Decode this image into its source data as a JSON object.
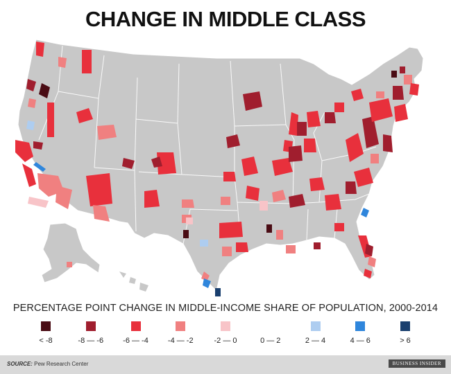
{
  "title": "CHANGE IN MIDDLE CLASS",
  "legend": {
    "title": "PERCENTAGE POINT CHANGE IN MIDDLE-INCOME SHARE OF POPULATION, 2000-2014",
    "items": [
      {
        "label": "< -8",
        "color": "#4a0c14"
      },
      {
        "label": "-8 — -6",
        "color": "#a01e2e"
      },
      {
        "label": "-6 — -4",
        "color": "#e8303c"
      },
      {
        "label": "-4 — -2",
        "color": "#f08080"
      },
      {
        "label": "-2 — 0",
        "color": "#f8c4c8"
      },
      {
        "label": "0 — 2",
        "color": "#ffffff"
      },
      {
        "label": "2 — 4",
        "color": "#aecdf0"
      },
      {
        "label": "4 — 6",
        "color": "#2f86dc"
      },
      {
        "label": "> 6",
        "color": "#1a3f6e"
      }
    ]
  },
  "map_colors": {
    "land": "#c8c8c8",
    "borders": "#ffffff"
  },
  "footer": {
    "source_label": "SOURCE:",
    "source_text": "Pew Research Center",
    "brand": "BUSINESS INSIDER"
  }
}
